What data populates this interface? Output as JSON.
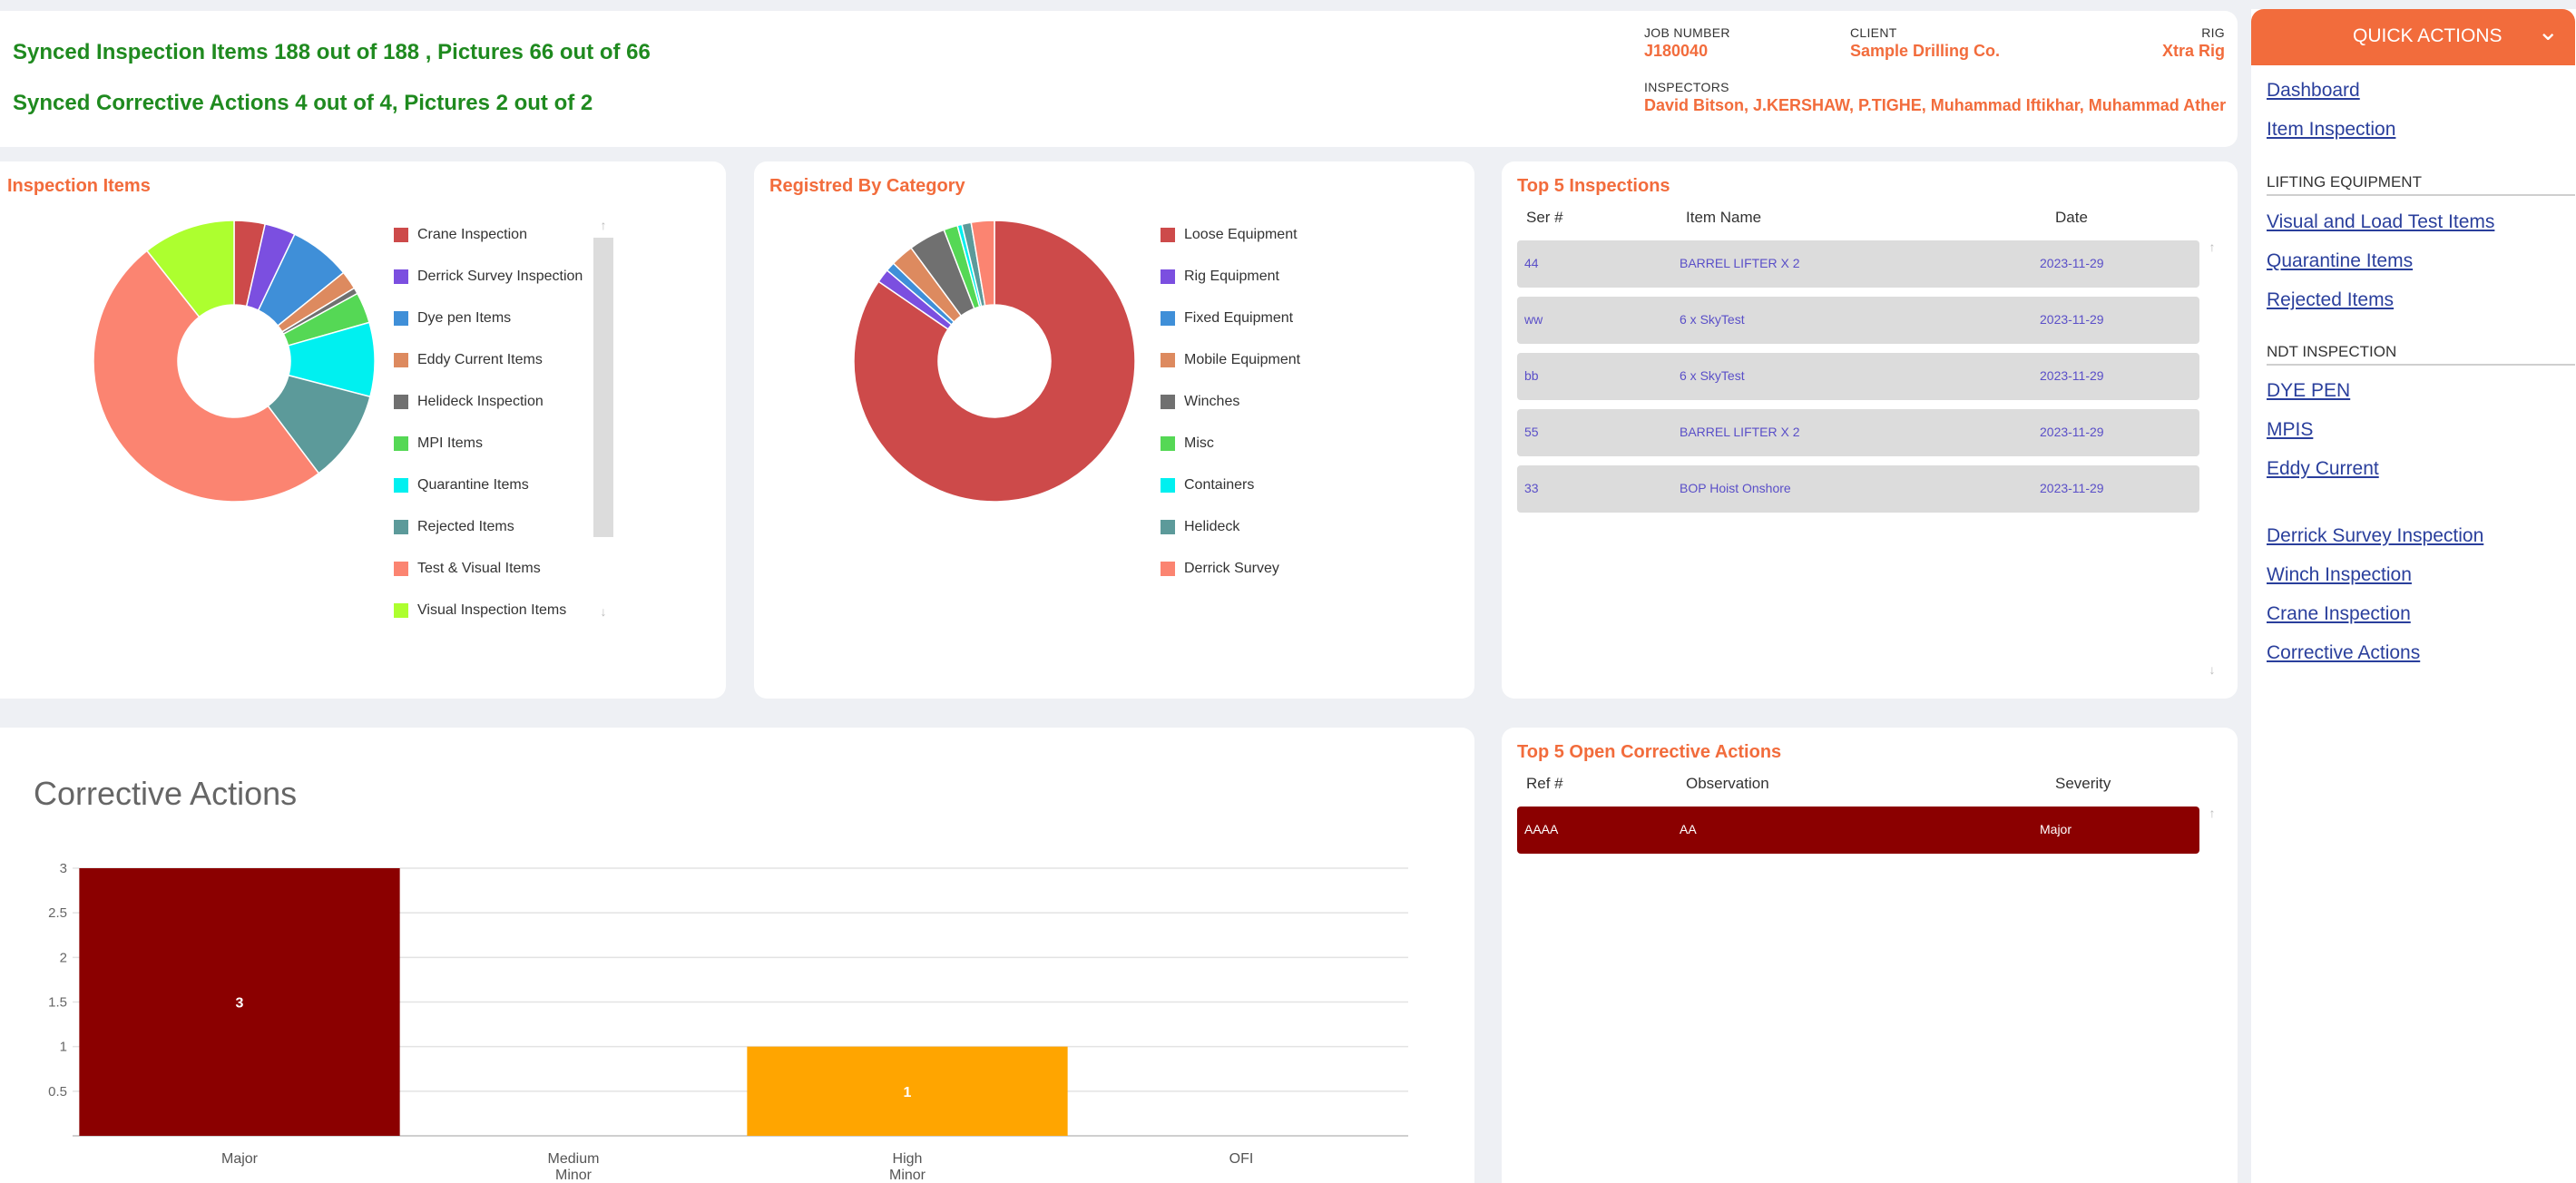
{
  "header": {
    "synced_items": "Synced Inspection Items 188 out of 188 , Pictures 66 out of 66",
    "synced_actions": "Synced Corrective Actions 4 out of 4, Pictures 2 out of 2",
    "job_number_label": "JOB NUMBER",
    "job_number": "J180040",
    "client_label": "CLIENT",
    "client": "Sample Drilling Co.",
    "rig_label": "RIG",
    "rig": "Xtra Rig",
    "inspectors_label": "INSPECTORS",
    "inspectors": "David Bitson, J.KERSHAW, P.TIGHE, Muhammad Iftikhar, Muhammad Ather"
  },
  "inspection_items": {
    "title": "Inspection Items",
    "legend": [
      "Crane Inspection",
      "Derrick Survey Inspection",
      "Dye pen Items",
      "Eddy Current Items",
      "Helideck Inspection",
      "MPI Items",
      "Quarantine Items",
      "Rejected Items",
      "Test & Visual Items",
      "Visual Inspection Items"
    ],
    "scroll_up": "↑",
    "scroll_down": "↓"
  },
  "registered_by_category": {
    "title": "Registred By Category",
    "legend": [
      "Loose Equipment",
      "Rig Equipment",
      "Fixed Equipment",
      "Mobile Equipment",
      "Winches",
      "Misc",
      "Containers",
      "Helideck",
      "Derrick Survey"
    ]
  },
  "top_inspections": {
    "title": "Top 5 Inspections",
    "columns": [
      "Ser #",
      "Item Name",
      "Date"
    ],
    "rows": [
      {
        "ser": "44",
        "name": "BARREL LIFTER X 2",
        "date": "2023-11-29"
      },
      {
        "ser": "ww",
        "name": "6 x SkyTest",
        "date": "2023-11-29"
      },
      {
        "ser": "bb",
        "name": "6 x SkyTest",
        "date": "2023-11-29"
      },
      {
        "ser": "55",
        "name": "BARREL LIFTER X 2",
        "date": "2023-11-29"
      },
      {
        "ser": "33",
        "name": "BOP Hoist Onshore",
        "date": "2023-11-29"
      }
    ],
    "scroll_up": "↑",
    "scroll_down": "↓"
  },
  "corrective_actions_chart": {
    "title": "Corrective Actions"
  },
  "top_open_corrective": {
    "title": "Top 5 Open Corrective Actions",
    "columns": [
      "Ref #",
      "Observation",
      "Severity"
    ],
    "rows": [
      {
        "ref": "AAAA",
        "observation": "AA",
        "severity": "Major"
      }
    ],
    "scroll_up": "↑"
  },
  "quick_actions": {
    "header": "QUICK ACTIONS",
    "chevron": "⌄",
    "links_top": [
      "Dashboard",
      "Item Inspection"
    ],
    "lifting_label": "LIFTING EQUIPMENT",
    "links_lifting": [
      "Visual and Load Test Items",
      "Quarantine Items",
      "Rejected Items"
    ],
    "ndt_label": "NDT INSPECTION",
    "links_ndt": [
      "DYE PEN",
      "MPIS",
      "Eddy Current"
    ],
    "links_other": [
      "Derrick Survey Inspection",
      "Winch Inspection",
      "Crane Inspection",
      "Corrective Actions"
    ]
  },
  "chart_data": [
    {
      "type": "pie",
      "title": "Inspection Items",
      "categories": [
        "Crane Inspection",
        "Derrick Survey Inspection",
        "Dye pen Items",
        "Eddy Current Items",
        "Helideck Inspection",
        "MPI Items",
        "Quarantine Items",
        "Rejected Items",
        "Test & Visual Items",
        "Visual Inspection Items"
      ],
      "values": [
        5,
        5,
        10,
        3,
        1,
        5,
        12,
        15,
        70,
        15
      ],
      "colors": [
        "#cd4a4a",
        "#7b4fe0",
        "#3f8fd8",
        "#dd8a5f",
        "#707070",
        "#55d855",
        "#00f0f0",
        "#5c9a9a",
        "#fb8471",
        "#adff2f"
      ]
    },
    {
      "type": "pie",
      "title": "Registred By Category",
      "categories": [
        "Loose Equipment",
        "Rig Equipment",
        "Fixed Equipment",
        "Mobile Equipment",
        "Winches",
        "Misc",
        "Containers",
        "Helideck",
        "Derrick Survey"
      ],
      "values": [
        159,
        3,
        2,
        5,
        8,
        3,
        1,
        2,
        5
      ],
      "colors": [
        "#cd4a4a",
        "#7b4fe0",
        "#3f8fd8",
        "#dd8a5f",
        "#707070",
        "#55d855",
        "#00f0f0",
        "#5c9a9a",
        "#fb8471"
      ]
    },
    {
      "type": "bar",
      "title": "Corrective Actions",
      "categories": [
        "Major",
        "Medium\nMinor",
        "High\nMinor",
        "OFI"
      ],
      "values": [
        3,
        0,
        1,
        0
      ],
      "colors": [
        "#8b0000",
        "#8b0000",
        "#ffa500",
        "#8b0000"
      ],
      "ylim": [
        0,
        3
      ],
      "yticks": [
        "0.5",
        "1",
        "1.5",
        "2",
        "2.5",
        "3"
      ]
    }
  ]
}
